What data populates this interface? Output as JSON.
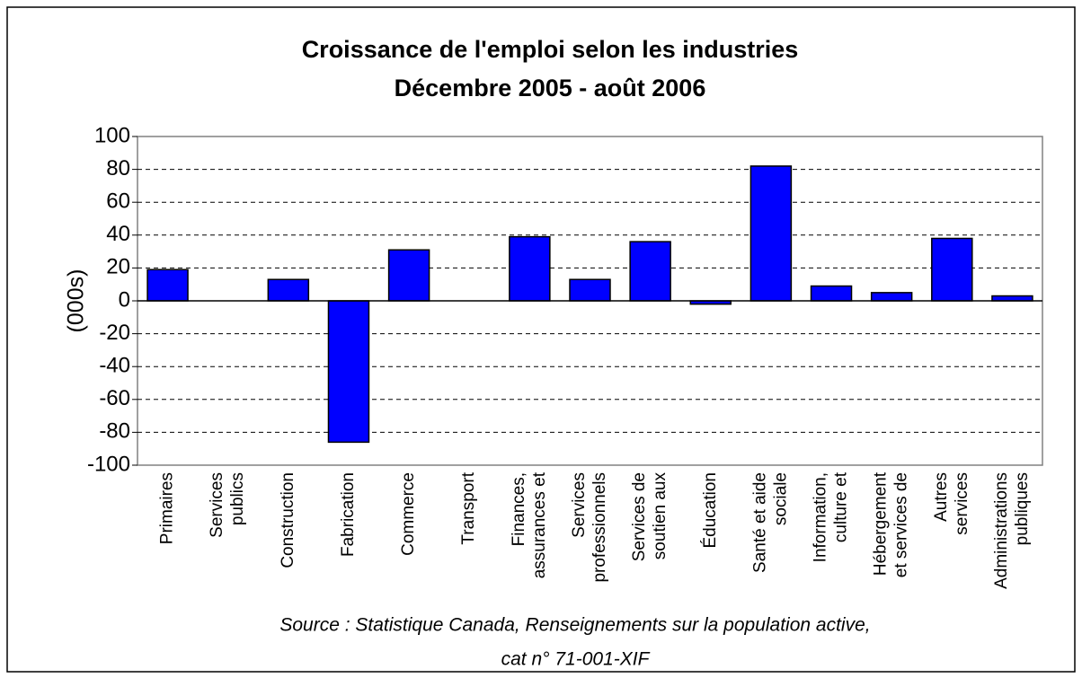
{
  "chart_data": {
    "type": "bar",
    "title": "Croissance de l'emploi selon les industries",
    "subtitle": "Décembre 2005 - août 2006",
    "y_label": "(000s)",
    "source": [
      "Source : Statistique Canada, Renseignements sur la population active,",
      "cat n° 71-001-XIF"
    ],
    "categories": [
      "Primaires",
      "Services\npublics",
      "Construction",
      "Fabrication",
      "Commerce",
      "Transport",
      "Finances,\nassurances et",
      "Services\nprofessionnels",
      "Services de\nsoutien aux",
      "Éducation",
      "Santé et aide\nsociale",
      "Information,\nculture et",
      "Hébergement\net services de",
      "Autres\nservices",
      "Administrations\npubliques"
    ],
    "values": [
      19,
      0,
      13,
      -86,
      31,
      0,
      39,
      13,
      36,
      -2,
      82,
      9,
      5,
      38,
      3
    ],
    "color": "#0000ff",
    "ylim": [
      -100,
      100
    ],
    "yticks": [
      -100,
      -80,
      -60,
      -40,
      -20,
      0,
      20,
      40,
      60,
      80,
      100
    ],
    "grid": true
  }
}
